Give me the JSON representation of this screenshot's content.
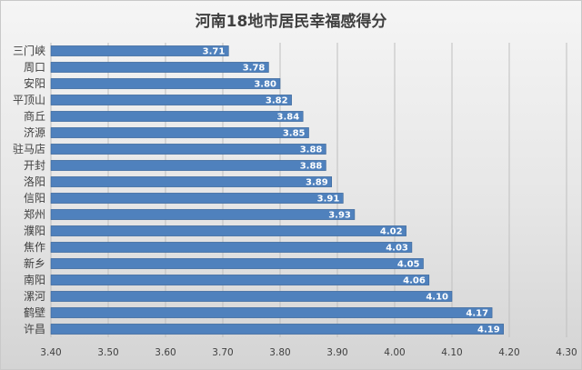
{
  "chart_data": {
    "type": "bar",
    "orientation": "horizontal",
    "title": "河南18地市居民幸福感得分",
    "categories": [
      "三门峡",
      "周口",
      "安阳",
      "平顶山",
      "商丘",
      "济源",
      "驻马店",
      "开封",
      "洛阳",
      "信阳",
      "郑州",
      "濮阳",
      "焦作",
      "新乡",
      "南阳",
      "漯河",
      "鹤壁",
      "许昌"
    ],
    "values": [
      3.71,
      3.78,
      3.8,
      3.82,
      3.84,
      3.85,
      3.88,
      3.88,
      3.89,
      3.91,
      3.93,
      4.02,
      4.03,
      4.05,
      4.06,
      4.1,
      4.17,
      4.19
    ],
    "value_labels": [
      "3.71",
      "3.78",
      "3.80",
      "3.82",
      "3.84",
      "3.85",
      "3.88",
      "3.88",
      "3.89",
      "3.91",
      "3.93",
      "4.02",
      "4.03",
      "4.05",
      "4.06",
      "4.10",
      "4.17",
      "4.19"
    ],
    "xlim": [
      3.4,
      4.3
    ],
    "x_ticks": [
      3.4,
      3.5,
      3.6,
      3.7,
      3.8,
      3.9,
      4.0,
      4.1,
      4.2,
      4.3
    ],
    "x_tick_labels": [
      "3.40",
      "3.50",
      "3.60",
      "3.70",
      "3.80",
      "3.90",
      "4.00",
      "4.10",
      "4.20",
      "4.30"
    ],
    "xlabel": "",
    "ylabel": "",
    "grid": true,
    "legend": "none",
    "colors": {
      "bar": "#4f81bd",
      "bar_edge": "#3a6496",
      "grid": "#bfbfbf",
      "axis_text": "#404040",
      "value_label": "#ffffff",
      "title": "#404040"
    }
  }
}
